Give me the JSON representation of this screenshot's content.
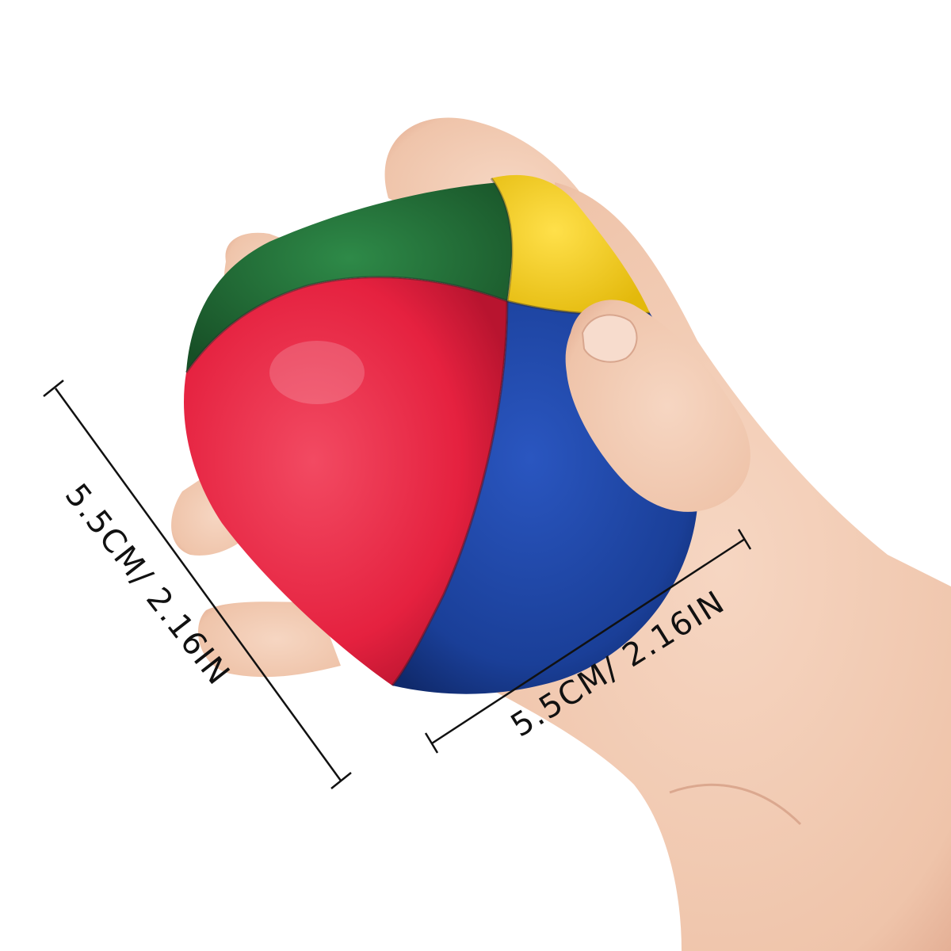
{
  "colors": {
    "background": "#ffffff",
    "skin": "#f0c9b2",
    "skin_shadow": "#d9a48c",
    "panel_green": "#1f6e35",
    "panel_yellow": "#f4d41b",
    "panel_red": "#e5213f",
    "panel_blue": "#1a3f98",
    "line": "#111111"
  },
  "dimensions": {
    "height_label": "5.5CM/ 2.16IN",
    "width_label": "5.5CM/ 2.16IN"
  }
}
